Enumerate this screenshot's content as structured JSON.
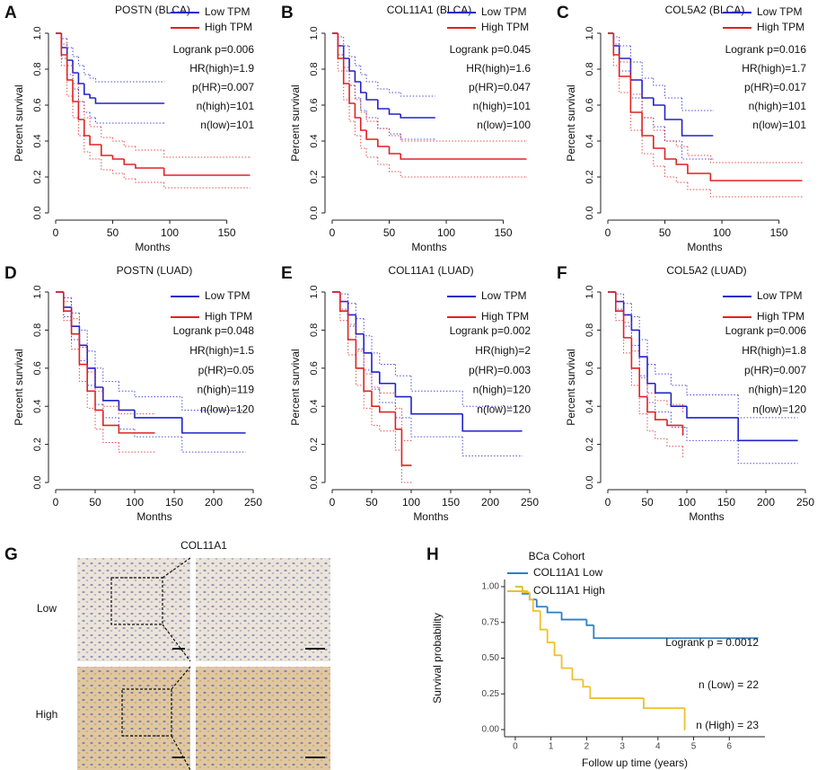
{
  "chart_data": [
    {
      "type": "km",
      "panel": "A",
      "title": "POSTN (BLCA)",
      "x_label": "Months",
      "y_label": "Percent survival",
      "xlim": [
        0,
        170
      ],
      "xticks": [
        0,
        50,
        100,
        150
      ],
      "ylim": [
        0,
        1
      ],
      "yticks": [
        {
          "value": 0,
          "label": "0.0"
        },
        0.2,
        0.4,
        0.6,
        0.8,
        {
          "value": 1,
          "label": "1.0"
        }
      ],
      "legend": "topright",
      "series": [
        {
          "name": "Low TPM",
          "color": "#2222cc",
          "x": [
            0,
            5,
            10,
            15,
            20,
            25,
            30,
            35,
            95
          ],
          "values": [
            1,
            0.92,
            0.85,
            0.78,
            0.72,
            0.66,
            0.64,
            0.61,
            0.61
          ],
          "upper": [
            1,
            0.97,
            0.92,
            0.87,
            0.82,
            0.77,
            0.75,
            0.73,
            0.73
          ],
          "lower": [
            1,
            0.86,
            0.77,
            0.69,
            0.62,
            0.56,
            0.53,
            0.5,
            0.5
          ]
        },
        {
          "name": "High TPM",
          "color": "#e02222",
          "x": [
            0,
            5,
            10,
            15,
            20,
            25,
            30,
            40,
            50,
            60,
            70,
            95,
            170
          ],
          "values": [
            1,
            0.88,
            0.74,
            0.62,
            0.52,
            0.43,
            0.38,
            0.32,
            0.3,
            0.27,
            0.25,
            0.21,
            0.21
          ],
          "upper": [
            1,
            0.94,
            0.82,
            0.72,
            0.62,
            0.53,
            0.48,
            0.42,
            0.4,
            0.37,
            0.35,
            0.31,
            0.31
          ],
          "lower": [
            1,
            0.82,
            0.65,
            0.53,
            0.43,
            0.34,
            0.3,
            0.24,
            0.22,
            0.19,
            0.17,
            0.14,
            0.14
          ]
        }
      ],
      "annotations": [
        "Logrank p=0.006",
        "HR(high)=1.9",
        "p(HR)=0.007",
        "n(high)=101",
        "n(low)=101"
      ]
    },
    {
      "type": "km",
      "panel": "B",
      "title": "COL11A1 (BLCA)",
      "x_label": "Months",
      "y_label": "Percent survival",
      "xlim": [
        0,
        170
      ],
      "xticks": [
        0,
        50,
        100,
        150
      ],
      "ylim": [
        0,
        1
      ],
      "yticks": [
        {
          "value": 0,
          "label": "0.0"
        },
        0.2,
        0.4,
        0.6,
        0.8,
        {
          "value": 1,
          "label": "1.0"
        }
      ],
      "legend": "topright",
      "series": [
        {
          "name": "Low TPM",
          "color": "#2222cc",
          "x": [
            0,
            5,
            10,
            15,
            20,
            25,
            30,
            40,
            50,
            60,
            90
          ],
          "values": [
            1,
            0.93,
            0.86,
            0.79,
            0.73,
            0.67,
            0.63,
            0.58,
            0.55,
            0.53,
            0.53
          ],
          "upper": [
            1,
            0.98,
            0.93,
            0.87,
            0.82,
            0.77,
            0.73,
            0.69,
            0.67,
            0.65,
            0.65
          ],
          "lower": [
            1,
            0.88,
            0.79,
            0.71,
            0.64,
            0.57,
            0.53,
            0.47,
            0.44,
            0.41,
            0.41
          ]
        },
        {
          "name": "High TPM",
          "color": "#e02222",
          "x": [
            0,
            5,
            10,
            15,
            20,
            25,
            30,
            40,
            50,
            60,
            170
          ],
          "values": [
            1,
            0.86,
            0.72,
            0.61,
            0.53,
            0.46,
            0.41,
            0.37,
            0.33,
            0.3,
            0.3
          ],
          "upper": [
            1,
            0.93,
            0.81,
            0.71,
            0.63,
            0.56,
            0.51,
            0.47,
            0.43,
            0.4,
            0.4
          ],
          "lower": [
            1,
            0.79,
            0.63,
            0.51,
            0.43,
            0.36,
            0.31,
            0.27,
            0.23,
            0.2,
            0.2
          ]
        }
      ],
      "annotations": [
        "Logrank p=0.045",
        "HR(high)=1.6",
        "p(HR)=0.047",
        "n(high)=101",
        "n(low)=100"
      ]
    },
    {
      "type": "km",
      "panel": "C",
      "title": "COL5A2 (BLCA)",
      "x_label": "Months",
      "y_label": "Percent survival",
      "xlim": [
        0,
        170
      ],
      "xticks": [
        0,
        50,
        100,
        150
      ],
      "ylim": [
        0,
        1
      ],
      "yticks": [
        {
          "value": 0,
          "label": "0.0"
        },
        0.2,
        0.4,
        0.6,
        0.8,
        {
          "value": 1,
          "label": "1.0"
        }
      ],
      "legend": "topright",
      "series": [
        {
          "name": "Low TPM",
          "color": "#2222cc",
          "x": [
            0,
            5,
            10,
            20,
            30,
            40,
            50,
            65,
            92
          ],
          "values": [
            1,
            0.93,
            0.86,
            0.74,
            0.64,
            0.6,
            0.52,
            0.43,
            0.43
          ],
          "upper": [
            1,
            0.98,
            0.93,
            0.84,
            0.75,
            0.71,
            0.64,
            0.57,
            0.57
          ],
          "lower": [
            1,
            0.88,
            0.79,
            0.64,
            0.53,
            0.48,
            0.4,
            0.3,
            0.3
          ]
        },
        {
          "name": "High TPM",
          "color": "#e02222",
          "x": [
            0,
            5,
            10,
            20,
            30,
            40,
            50,
            60,
            70,
            90,
            170
          ],
          "values": [
            1,
            0.88,
            0.76,
            0.56,
            0.43,
            0.36,
            0.3,
            0.27,
            0.22,
            0.18,
            0.18
          ],
          "upper": [
            1,
            0.94,
            0.84,
            0.66,
            0.53,
            0.46,
            0.4,
            0.37,
            0.32,
            0.28,
            0.28
          ],
          "lower": [
            1,
            0.82,
            0.67,
            0.46,
            0.33,
            0.26,
            0.2,
            0.17,
            0.13,
            0.09,
            0.09
          ]
        }
      ],
      "annotations": [
        "Logrank p=0.016",
        "HR(high)=1.7",
        "p(HR)=0.017",
        "n(high)=101",
        "n(low)=101"
      ]
    },
    {
      "type": "km",
      "panel": "D",
      "title": "POSTN (LUAD)",
      "x_label": "Months",
      "y_label": "Percent survival",
      "xlim": [
        0,
        250
      ],
      "xticks": [
        0,
        50,
        100,
        150,
        200,
        250
      ],
      "ylim": [
        0,
        1
      ],
      "yticks": [
        {
          "value": 0,
          "label": "0.0"
        },
        0.2,
        0.4,
        0.6,
        0.8,
        {
          "value": 1,
          "label": "1.0"
        }
      ],
      "legend": "topright",
      "series": [
        {
          "name": "Low TPM",
          "color": "#2222cc",
          "x": [
            0,
            10,
            20,
            30,
            40,
            50,
            60,
            80,
            100,
            160,
            240
          ],
          "values": [
            1,
            0.92,
            0.82,
            0.72,
            0.6,
            0.5,
            0.43,
            0.38,
            0.34,
            0.26,
            0.26
          ],
          "upper": [
            1,
            0.97,
            0.89,
            0.8,
            0.69,
            0.6,
            0.53,
            0.48,
            0.45,
            0.38,
            0.38
          ],
          "lower": [
            1,
            0.87,
            0.75,
            0.64,
            0.51,
            0.41,
            0.34,
            0.28,
            0.24,
            0.16,
            0.16
          ]
        },
        {
          "name": "High TPM",
          "color": "#e02222",
          "x": [
            0,
            10,
            20,
            30,
            40,
            50,
            60,
            80,
            125
          ],
          "values": [
            1,
            0.9,
            0.78,
            0.62,
            0.48,
            0.38,
            0.3,
            0.26,
            0.26
          ],
          "upper": [
            1,
            0.95,
            0.86,
            0.71,
            0.58,
            0.48,
            0.4,
            0.36,
            0.36
          ],
          "lower": [
            1,
            0.85,
            0.7,
            0.53,
            0.39,
            0.28,
            0.21,
            0.16,
            0.16
          ]
        }
      ],
      "annotations": [
        "Logrank p=0.048",
        "HR(high)=1.5",
        "p(HR)=0.05",
        "n(high)=119",
        "n(low)=120"
      ]
    },
    {
      "type": "km",
      "panel": "E",
      "title": "COL11A1 (LUAD)",
      "x_label": "Months",
      "y_label": "Percent survival",
      "xlim": [
        0,
        250
      ],
      "xticks": [
        0,
        50,
        100,
        150,
        200,
        250
      ],
      "ylim": [
        0,
        1
      ],
      "yticks": [
        {
          "value": 0,
          "label": "0.0"
        },
        0.2,
        0.4,
        0.6,
        0.8,
        {
          "value": 1,
          "label": "1.0"
        }
      ],
      "legend": "topright",
      "series": [
        {
          "name": "Low TPM",
          "color": "#2222cc",
          "x": [
            0,
            10,
            20,
            30,
            40,
            50,
            60,
            80,
            100,
            165,
            240
          ],
          "values": [
            1,
            0.95,
            0.88,
            0.78,
            0.68,
            0.58,
            0.52,
            0.45,
            0.36,
            0.27,
            0.27
          ],
          "upper": [
            1,
            0.99,
            0.94,
            0.86,
            0.77,
            0.68,
            0.62,
            0.56,
            0.48,
            0.4,
            0.4
          ],
          "lower": [
            1,
            0.91,
            0.82,
            0.7,
            0.59,
            0.49,
            0.42,
            0.34,
            0.24,
            0.14,
            0.14
          ]
        },
        {
          "name": "High TPM",
          "color": "#e02222",
          "x": [
            0,
            10,
            20,
            30,
            40,
            50,
            60,
            80,
            88,
            100
          ],
          "values": [
            1,
            0.9,
            0.75,
            0.6,
            0.48,
            0.4,
            0.37,
            0.28,
            0.09,
            0.09
          ],
          "upper": [
            1,
            0.95,
            0.83,
            0.69,
            0.57,
            0.5,
            0.47,
            0.39,
            0.22,
            0.22
          ],
          "lower": [
            1,
            0.85,
            0.67,
            0.51,
            0.39,
            0.3,
            0.27,
            0.17,
            0,
            0
          ]
        }
      ],
      "annotations": [
        "Logrank p=0.002",
        "HR(high)=2",
        "p(HR)=0.003",
        "n(high)=120",
        "n(low)=120"
      ]
    },
    {
      "type": "km",
      "panel": "F",
      "title": "COL5A2 (LUAD)",
      "x_label": "Months",
      "y_label": "Percent survival",
      "xlim": [
        0,
        250
      ],
      "xticks": [
        0,
        50,
        100,
        150,
        200,
        250
      ],
      "ylim": [
        0,
        1
      ],
      "yticks": [
        {
          "value": 0,
          "label": "0.0"
        },
        0.2,
        0.4,
        0.6,
        0.8,
        {
          "value": 1,
          "label": "1.0"
        }
      ],
      "legend": "topright",
      "series": [
        {
          "name": "Low TPM",
          "color": "#2222cc",
          "x": [
            0,
            10,
            20,
            30,
            40,
            50,
            60,
            80,
            100,
            165,
            240
          ],
          "values": [
            1,
            0.95,
            0.88,
            0.8,
            0.66,
            0.52,
            0.47,
            0.4,
            0.34,
            0.22,
            0.22
          ],
          "upper": [
            1,
            0.99,
            0.94,
            0.87,
            0.75,
            0.62,
            0.57,
            0.51,
            0.46,
            0.34,
            0.34
          ],
          "lower": [
            1,
            0.91,
            0.82,
            0.72,
            0.56,
            0.42,
            0.37,
            0.29,
            0.22,
            0.1,
            0.1
          ]
        },
        {
          "name": "High TPM",
          "color": "#e02222",
          "x": [
            0,
            10,
            20,
            30,
            40,
            50,
            60,
            75,
            95
          ],
          "values": [
            1,
            0.9,
            0.76,
            0.6,
            0.45,
            0.37,
            0.33,
            0.3,
            0.25
          ],
          "upper": [
            1,
            0.95,
            0.84,
            0.69,
            0.55,
            0.47,
            0.43,
            0.41,
            0.37
          ],
          "lower": [
            1,
            0.85,
            0.68,
            0.51,
            0.36,
            0.27,
            0.23,
            0.19,
            0.13
          ]
        }
      ],
      "annotations": [
        "Logrank p=0.006",
        "HR(high)=1.8",
        "p(HR)=0.007",
        "n(high)=120",
        "n(low)=120"
      ]
    },
    {
      "type": "km",
      "panel": "H",
      "title": "BCa Cohort",
      "x_label": "Follow up time (years)",
      "y_label": "Survival probability",
      "xlim": [
        -0.3,
        7
      ],
      "xticks": [
        0,
        1,
        2,
        3,
        4,
        5,
        6
      ],
      "ylim": [
        -0.05,
        1.05
      ],
      "yticks": [
        {
          "value": 0,
          "label": "0.00"
        },
        0.25,
        {
          "value": 0.5,
          "label": "0.50"
        },
        0.75,
        {
          "value": 1,
          "label": "1.00"
        }
      ],
      "legend": "topleft",
      "series": [
        {
          "name": "COL11A1 Low",
          "color": "#2f7ec1",
          "x": [
            0,
            0.2,
            0.4,
            0.6,
            0.9,
            1.3,
            2.0,
            2.2,
            6.8
          ],
          "values": [
            1,
            0.95,
            0.91,
            0.86,
            0.82,
            0.77,
            0.73,
            0.64,
            0.64
          ]
        },
        {
          "name": "COL11A1 High",
          "color": "#f0c02c",
          "x": [
            0,
            0.2,
            0.4,
            0.5,
            0.7,
            0.9,
            1.1,
            1.3,
            1.6,
            1.9,
            2.1,
            3.6,
            4.75
          ],
          "values": [
            1,
            0.96,
            0.91,
            0.83,
            0.7,
            0.61,
            0.52,
            0.43,
            0.35,
            0.3,
            0.22,
            0.15,
            0
          ]
        }
      ],
      "annotations": [
        "Logrank p = 0.0012",
        "n (Low) = 22",
        "n (High) = 23"
      ]
    }
  ],
  "panel_g": {
    "letter": "G",
    "title": "COL11A1",
    "rows": [
      "Low",
      "High"
    ]
  }
}
